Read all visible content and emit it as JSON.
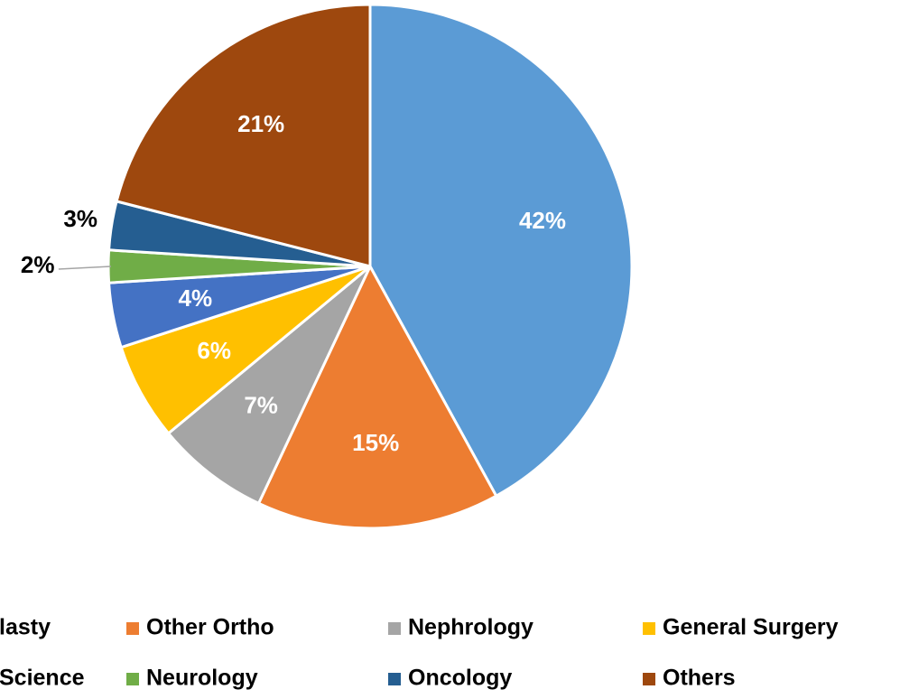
{
  "chart_data": {
    "type": "pie",
    "categories": [
      "lasty",
      "Other Ortho",
      "Nephrology",
      "General Surgery",
      "Science",
      "Neurology",
      "Oncology",
      "Others"
    ],
    "values": [
      42,
      15,
      7,
      6,
      4,
      2,
      3,
      21
    ],
    "value_labels": [
      "42%",
      "15%",
      "7%",
      "6%",
      "4%",
      "2%",
      "3%",
      "21%"
    ],
    "colors": [
      "#5b9bd5",
      "#ed7d31",
      "#a5a5a5",
      "#ffc000",
      "#4472c4",
      "#70ad47",
      "#255e91",
      "#9e480e"
    ],
    "legend": "bottom"
  }
}
